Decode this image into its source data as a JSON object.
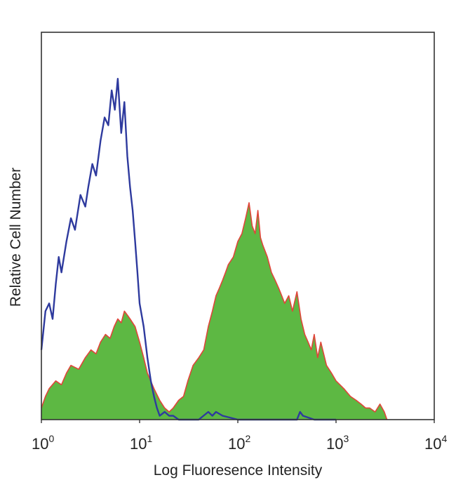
{
  "chart_data": {
    "type": "area",
    "xlabel": "Log Fluoresence Intensity",
    "ylabel": "Relative Cell Number",
    "x_scale": "log",
    "xlim": [
      1,
      10000
    ],
    "ylim": [
      0,
      100
    ],
    "grid": false,
    "x_ticks": [
      {
        "base": "10",
        "exp": "0"
      },
      {
        "base": "10",
        "exp": "1"
      },
      {
        "base": "10",
        "exp": "2"
      },
      {
        "base": "10",
        "exp": "3"
      },
      {
        "base": "10",
        "exp": "4"
      }
    ],
    "series": [
      {
        "style": "line",
        "color": "#2e3a9e",
        "x": [
          1.0,
          1.1,
          1.2,
          1.3,
          1.4,
          1.5,
          1.6,
          1.8,
          2.0,
          2.2,
          2.5,
          2.8,
          3.0,
          3.3,
          3.6,
          4.0,
          4.4,
          4.8,
          5.2,
          5.6,
          6.0,
          6.5,
          7.0,
          7.5,
          8.0,
          8.5,
          9.0,
          9.5,
          10.0,
          11.0,
          12.0,
          13.0,
          14.0,
          15.0,
          16.0,
          18.0,
          20.0,
          22.0,
          25.0,
          30.0,
          40.0,
          50.0,
          55.0,
          60.0,
          70.0,
          100.0,
          200.0,
          400.0,
          430.0,
          460.0,
          600.0,
          1000.0
        ],
        "y": [
          18,
          28,
          30,
          26,
          35,
          42,
          38,
          46,
          52,
          49,
          58,
          55,
          60,
          66,
          63,
          72,
          78,
          76,
          85,
          80,
          88,
          74,
          82,
          68,
          60,
          54,
          46,
          38,
          30,
          24,
          16,
          10,
          6,
          3,
          1,
          2,
          1,
          1,
          0,
          0,
          0,
          2,
          1,
          2,
          1,
          0,
          0,
          0,
          2,
          1,
          0,
          0
        ]
      },
      {
        "style": "filled",
        "color": "#5db843",
        "edge_color": "#e0453a",
        "x": [
          1.0,
          1.1,
          1.2,
          1.4,
          1.6,
          1.8,
          2.0,
          2.4,
          2.8,
          3.2,
          3.6,
          4.0,
          4.5,
          5.0,
          5.5,
          6.0,
          6.5,
          7.0,
          7.5,
          8.0,
          9.0,
          10.0,
          11.0,
          12.0,
          14.0,
          16.0,
          18.0,
          20.0,
          22.0,
          25.0,
          28.0,
          31.0,
          35.0,
          40.0,
          45.0,
          50.0,
          55.0,
          60.0,
          65.0,
          70.0,
          75.0,
          80.0,
          90.0,
          100.0,
          110.0,
          120.0,
          130.0,
          140.0,
          150.0,
          160.0,
          170.0,
          180.0,
          200.0,
          220.0,
          240.0,
          260.0,
          280.0,
          300.0,
          330.0,
          360.0,
          400.0,
          440.0,
          480.0,
          520.0,
          560.0,
          600.0,
          650.0,
          700.0,
          800.0,
          900.0,
          1000.0,
          1200.0,
          1400.0,
          1600.0,
          1800.0,
          2000.0,
          2200.0,
          2500.0,
          2800.0,
          3100.0,
          3300.0
        ],
        "y": [
          3,
          6,
          8,
          10,
          9,
          12,
          14,
          13,
          16,
          18,
          17,
          20,
          22,
          21,
          24,
          26,
          25,
          28,
          27,
          26,
          24,
          20,
          16,
          12,
          8,
          5,
          3,
          2,
          3,
          5,
          6,
          10,
          14,
          16,
          18,
          24,
          28,
          32,
          34,
          36,
          38,
          40,
          42,
          46,
          48,
          52,
          56,
          50,
          48,
          54,
          47,
          45,
          42,
          38,
          36,
          34,
          32,
          30,
          32,
          28,
          33,
          26,
          22,
          20,
          18,
          22,
          16,
          20,
          14,
          12,
          10,
          8,
          6,
          5,
          4,
          3,
          3,
          2,
          4,
          2,
          0
        ]
      }
    ]
  }
}
